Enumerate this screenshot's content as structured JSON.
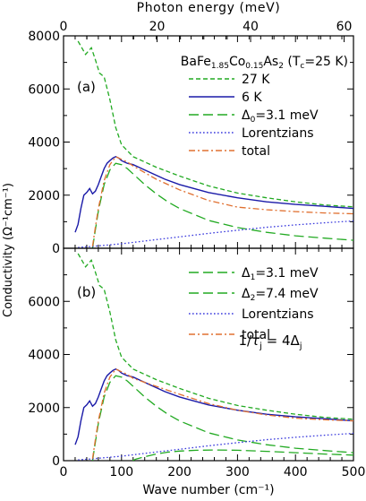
{
  "chart_data": {
    "type": "line",
    "top_axis": {
      "label": "Photon energy (meV)",
      "ticks": [
        {
          "value": 0,
          "label": "0"
        },
        {
          "value": 20,
          "label": "20"
        },
        {
          "value": 40,
          "label": "40"
        },
        {
          "value": 60,
          "label": "60"
        }
      ],
      "range": [
        0,
        62
      ]
    },
    "xlabel": "Wave number (cm⁻¹)",
    "ylabel": "Conductivity (Ω⁻¹cm⁻¹)",
    "xlim": [
      0,
      500
    ],
    "x_ticks": [
      "0",
      "100",
      "200",
      "300",
      "400",
      "500"
    ],
    "panels": [
      {
        "tag": "(a)",
        "ylim": [
          0,
          8000
        ],
        "y_ticks": [
          "0",
          "2000",
          "4000",
          "6000",
          "8000"
        ],
        "title": "BaFe₁.₈₅Co₀.₁₅As₂ (Tⱼ=25 K)",
        "title_parts": {
          "base": "BaFe",
          "sub1": "1.85",
          "mid1": "Co",
          "sub2": "0.15",
          "mid2": "As",
          "sub3": "2",
          "mid3": " (T",
          "sub4": "c",
          "end": "=25 K)"
        },
        "legend": [
          {
            "label": "27 K",
            "color": "#22aa22",
            "dash": "5,3"
          },
          {
            "label": "6 K",
            "color": "#1a1aa8",
            "dash": ""
          },
          {
            "label": "Δ₀=3.1 meV",
            "base": "Δ",
            "sub": "0",
            "rest": "=3.1 meV",
            "color": "#22aa22",
            "dash": "11,5"
          },
          {
            "label": "Lorentzians",
            "color": "#3a3add",
            "dash": "1.6,2.4"
          },
          {
            "label": "total",
            "color": "#e07030",
            "dash": "7,3,2,3"
          }
        ],
        "series": [
          {
            "name": "27 K",
            "x": [
              25,
              38,
              48,
              55,
              62,
              70,
              80,
              90,
              100,
              120,
              140,
              160,
              200,
              250,
              300,
              350,
              400,
              450,
              500
            ],
            "y": [
              7800,
              7300,
              7550,
              7100,
              6600,
              6450,
              5600,
              4550,
              3900,
              3450,
              3250,
              3050,
              2720,
              2350,
              2080,
              1900,
              1750,
              1630,
              1560
            ]
          },
          {
            "name": "6 K",
            "x": [
              20,
              25,
              30,
              35,
              40,
              45,
              50,
              55,
              60,
              65,
              70,
              75,
              80,
              85,
              90,
              95,
              100,
              105,
              110,
              120,
              130,
              140,
              150,
              175,
              200,
              250,
              300,
              350,
              400,
              450,
              500
            ],
            "y": [
              600,
              900,
              1500,
              2000,
              2100,
              2250,
              2050,
              2150,
              2400,
              2700,
              3000,
              3200,
              3300,
              3400,
              3450,
              3400,
              3300,
              3250,
              3200,
              3150,
              3050,
              2950,
              2850,
              2600,
              2400,
              2100,
              1900,
              1750,
              1650,
              1580,
              1500
            ]
          },
          {
            "name": "Δ₀=3.1 meV",
            "x": [
              50,
              55,
              60,
              70,
              80,
              90,
              100,
              110,
              120,
              140,
              160,
              180,
              200,
              250,
              300,
              350,
              400,
              450,
              500
            ],
            "y": [
              0,
              700,
              1400,
              2400,
              2950,
              3200,
              3150,
              3000,
              2800,
              2400,
              2050,
              1750,
              1500,
              1050,
              780,
              600,
              470,
              380,
              300
            ]
          },
          {
            "name": "Lorentzians",
            "x": [
              25,
              50,
              100,
              150,
              200,
              250,
              300,
              350,
              400,
              450,
              500
            ],
            "y": [
              30,
              70,
              170,
              300,
              430,
              560,
              680,
              790,
              880,
              960,
              1030
            ]
          },
          {
            "name": "total",
            "x": [
              50,
              55,
              60,
              70,
              80,
              90,
              100,
              110,
              120,
              140,
              160,
              180,
              200,
              250,
              300,
              350,
              400,
              450,
              500
            ],
            "y": [
              70,
              800,
              1500,
              2550,
              3150,
              3450,
              3350,
              3250,
              3100,
              2850,
              2600,
              2400,
              2200,
              1800,
              1550,
              1450,
              1380,
              1330,
              1300
            ]
          }
        ]
      },
      {
        "tag": "(b)",
        "ylim": [
          0,
          8000
        ],
        "y_ticks": [
          "0",
          "2000",
          "4000",
          "6000",
          ""
        ],
        "annotation": {
          "label": "1/τⱼ = 4Δⱼ",
          "a": "1/",
          "tau": "τ",
          "sub1": "j",
          "mid": " = 4Δ",
          "sub2": "j"
        },
        "legend": [
          {
            "label": "Δ₁=3.1 meV",
            "base": "Δ",
            "sub": "1",
            "rest": "=3.1 meV",
            "color": "#22aa22",
            "dash": "11,5"
          },
          {
            "label": "Δ₂=7.4 meV",
            "base": "Δ",
            "sub": "2",
            "rest": "=7.4 meV",
            "color": "#22aa22",
            "dash": "11,5"
          },
          {
            "label": "Lorentzians",
            "color": "#3a3add",
            "dash": "1.6,2.4"
          },
          {
            "label": "total",
            "color": "#e07030",
            "dash": "7,3,2,3"
          }
        ],
        "series": [
          {
            "name": "27 K",
            "x": [
              25,
              38,
              48,
              55,
              62,
              70,
              80,
              90,
              100,
              120,
              140,
              160,
              200,
              250,
              300,
              350,
              400,
              450,
              500
            ],
            "y": [
              7800,
              7300,
              7550,
              7100,
              6600,
              6450,
              5600,
              4550,
              3900,
              3450,
              3250,
              3050,
              2720,
              2350,
              2080,
              1900,
              1750,
              1630,
              1560
            ]
          },
          {
            "name": "6 K",
            "x": [
              20,
              25,
              30,
              35,
              40,
              45,
              50,
              55,
              60,
              65,
              70,
              75,
              80,
              85,
              90,
              95,
              100,
              105,
              110,
              120,
              130,
              140,
              150,
              175,
              200,
              250,
              300,
              350,
              400,
              450,
              500
            ],
            "y": [
              600,
              900,
              1500,
              2000,
              2100,
              2250,
              2050,
              2150,
              2400,
              2700,
              3000,
              3200,
              3300,
              3400,
              3450,
              3400,
              3300,
              3250,
              3200,
              3150,
              3050,
              2950,
              2850,
              2600,
              2400,
              2100,
              1900,
              1750,
              1650,
              1580,
              1500
            ]
          },
          {
            "name": "Δ₁=3.1 meV",
            "x": [
              50,
              55,
              60,
              70,
              80,
              90,
              100,
              110,
              120,
              140,
              160,
              180,
              200,
              250,
              300,
              350,
              400,
              450,
              500
            ],
            "y": [
              0,
              700,
              1400,
              2400,
              2950,
              3200,
              3150,
              3000,
              2800,
              2400,
              2050,
              1750,
              1500,
              1050,
              780,
              600,
              470,
              380,
              300
            ]
          },
          {
            "name": "Δ₂=7.4 meV",
            "x": [
              119,
              125,
              140,
              160,
              180,
              200,
              230,
              260,
              300,
              350,
              400,
              450,
              500
            ],
            "y": [
              0,
              60,
              150,
              250,
              320,
              360,
              390,
              400,
              390,
              350,
              300,
              250,
              210
            ]
          },
          {
            "name": "Lorentzians",
            "x": [
              25,
              50,
              100,
              150,
              200,
              250,
              300,
              350,
              400,
              450,
              500
            ],
            "y": [
              30,
              70,
              170,
              300,
              430,
              560,
              680,
              790,
              880,
              960,
              1030
            ]
          },
          {
            "name": "total",
            "x": [
              50,
              55,
              60,
              70,
              80,
              90,
              100,
              110,
              120,
              140,
              160,
              180,
              200,
              250,
              300,
              350,
              400,
              450,
              500
            ],
            "y": [
              70,
              800,
              1500,
              2550,
              3150,
              3450,
              3350,
              3250,
              3100,
              2950,
              2800,
              2650,
              2500,
              2150,
              1900,
              1720,
              1600,
              1540,
              1500
            ]
          }
        ]
      }
    ]
  },
  "colors": {
    "green": "#22aa22",
    "blue": "#1a1aa8",
    "lorentz": "#3a3add",
    "orange": "#e07030"
  }
}
